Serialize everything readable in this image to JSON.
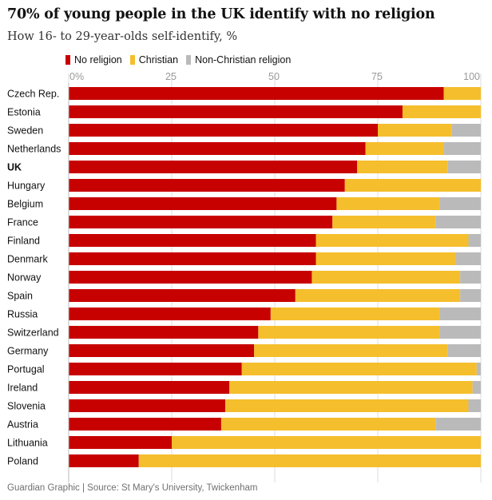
{
  "colors": {
    "no_religion": "#c70000",
    "christian": "#f5be2c",
    "non_christian": "#bababa",
    "gridline": "#dcdcdc",
    "tick_label": "#999999"
  },
  "chart_data": {
    "type": "bar",
    "orientation": "horizontal",
    "stacked": true,
    "title": "70% of young people in the UK identify with no religion",
    "subtitle": "How 16- to 29-year-olds self-identify, %",
    "xlim": [
      0,
      100
    ],
    "ticks": [
      0,
      25,
      50,
      75,
      100
    ],
    "tick_labels": [
      "0%",
      "25",
      "50",
      "75",
      "100"
    ],
    "highlight": "UK",
    "categories": [
      "Czech Rep.",
      "Estonia",
      "Sweden",
      "Netherlands",
      "UK",
      "Hungary",
      "Belgium",
      "France",
      "Finland",
      "Denmark",
      "Norway",
      "Spain",
      "Russia",
      "Switzerland",
      "Germany",
      "Portugal",
      "Ireland",
      "Slovenia",
      "Austria",
      "Lithuania",
      "Poland"
    ],
    "series": [
      {
        "name": "No religion",
        "key": "no_religion",
        "values": [
          91,
          81,
          75,
          72,
          70,
          67,
          65,
          64,
          60,
          60,
          59,
          55,
          49,
          46,
          45,
          42,
          39,
          38,
          37,
          25,
          17
        ]
      },
      {
        "name": "Christian",
        "key": "christian",
        "values": [
          9,
          19,
          18,
          19,
          22,
          33,
          25,
          25,
          37,
          34,
          36,
          40,
          41,
          44,
          47,
          57,
          59,
          59,
          52,
          75,
          83
        ]
      },
      {
        "name": "Non-Christian religion",
        "key": "non_christian",
        "values": [
          0,
          0,
          7,
          9,
          8,
          0,
          10,
          11,
          3,
          6,
          5,
          5,
          10,
          10,
          8,
          1,
          2,
          3,
          11,
          0,
          0
        ]
      }
    ]
  },
  "footer": "Guardian Graphic | Source: St Mary's University, Twickenham"
}
